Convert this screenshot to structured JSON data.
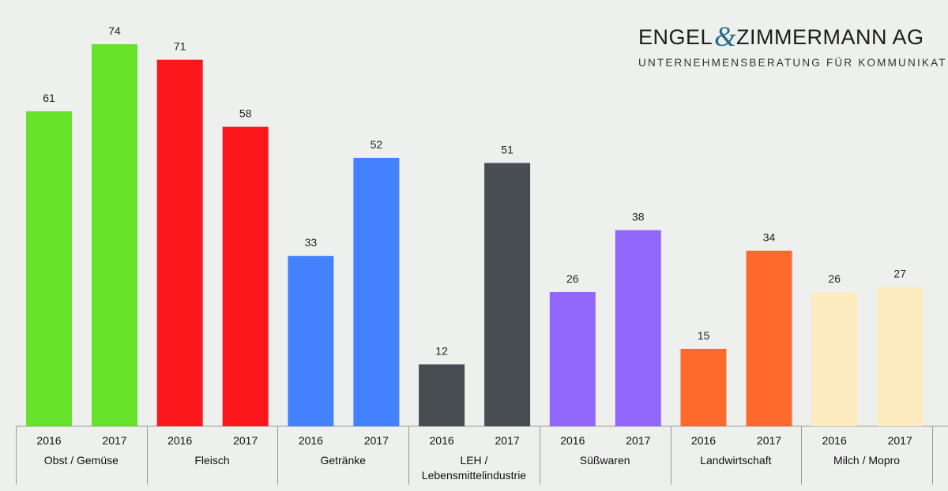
{
  "logo": {
    "name_left": "ENGEL",
    "ampersand": "&",
    "name_right": "ZIMMERMANN AG",
    "tagline": "UNTERNEHMENSBERATUNG FÜR KOMMUNIKATION",
    "accent_color": "#2a6a8a"
  },
  "chart_data": {
    "type": "bar",
    "title": "",
    "xlabel": "",
    "ylabel": "",
    "ylim": [
      0,
      80
    ],
    "grid": false,
    "legend": "none",
    "groups": [
      {
        "category": [
          "Obst / Gemüse"
        ],
        "color": "#66e22a",
        "bars": [
          {
            "year": "2016",
            "value": 61
          },
          {
            "year": "2017",
            "value": 74
          }
        ]
      },
      {
        "category": [
          "Fleisch"
        ],
        "color": "#fc171c",
        "bars": [
          {
            "year": "2016",
            "value": 71
          },
          {
            "year": "2017",
            "value": 58
          }
        ]
      },
      {
        "category": [
          "Getränke"
        ],
        "color": "#4381ff",
        "bars": [
          {
            "year": "2016",
            "value": 33
          },
          {
            "year": "2017",
            "value": 52
          }
        ]
      },
      {
        "category": [
          "LEH /",
          "Lebensmittelindustrie"
        ],
        "color": "#474d50",
        "bars": [
          {
            "year": "2016",
            "value": 12
          },
          {
            "year": "2017",
            "value": 51
          }
        ]
      },
      {
        "category": [
          "Süßwaren"
        ],
        "color": "#9168fb",
        "bars": [
          {
            "year": "2016",
            "value": 26
          },
          {
            "year": "2017",
            "value": 38
          }
        ]
      },
      {
        "category": [
          "Landwirtschaft"
        ],
        "color": "#fe6a2b",
        "bars": [
          {
            "year": "2016",
            "value": 15
          },
          {
            "year": "2017",
            "value": 34
          }
        ]
      },
      {
        "category": [
          "Milch / Mopro"
        ],
        "color": "#fdecc0",
        "bars": [
          {
            "year": "2016",
            "value": 26
          },
          {
            "year": "2017",
            "value": 27
          }
        ]
      }
    ]
  }
}
